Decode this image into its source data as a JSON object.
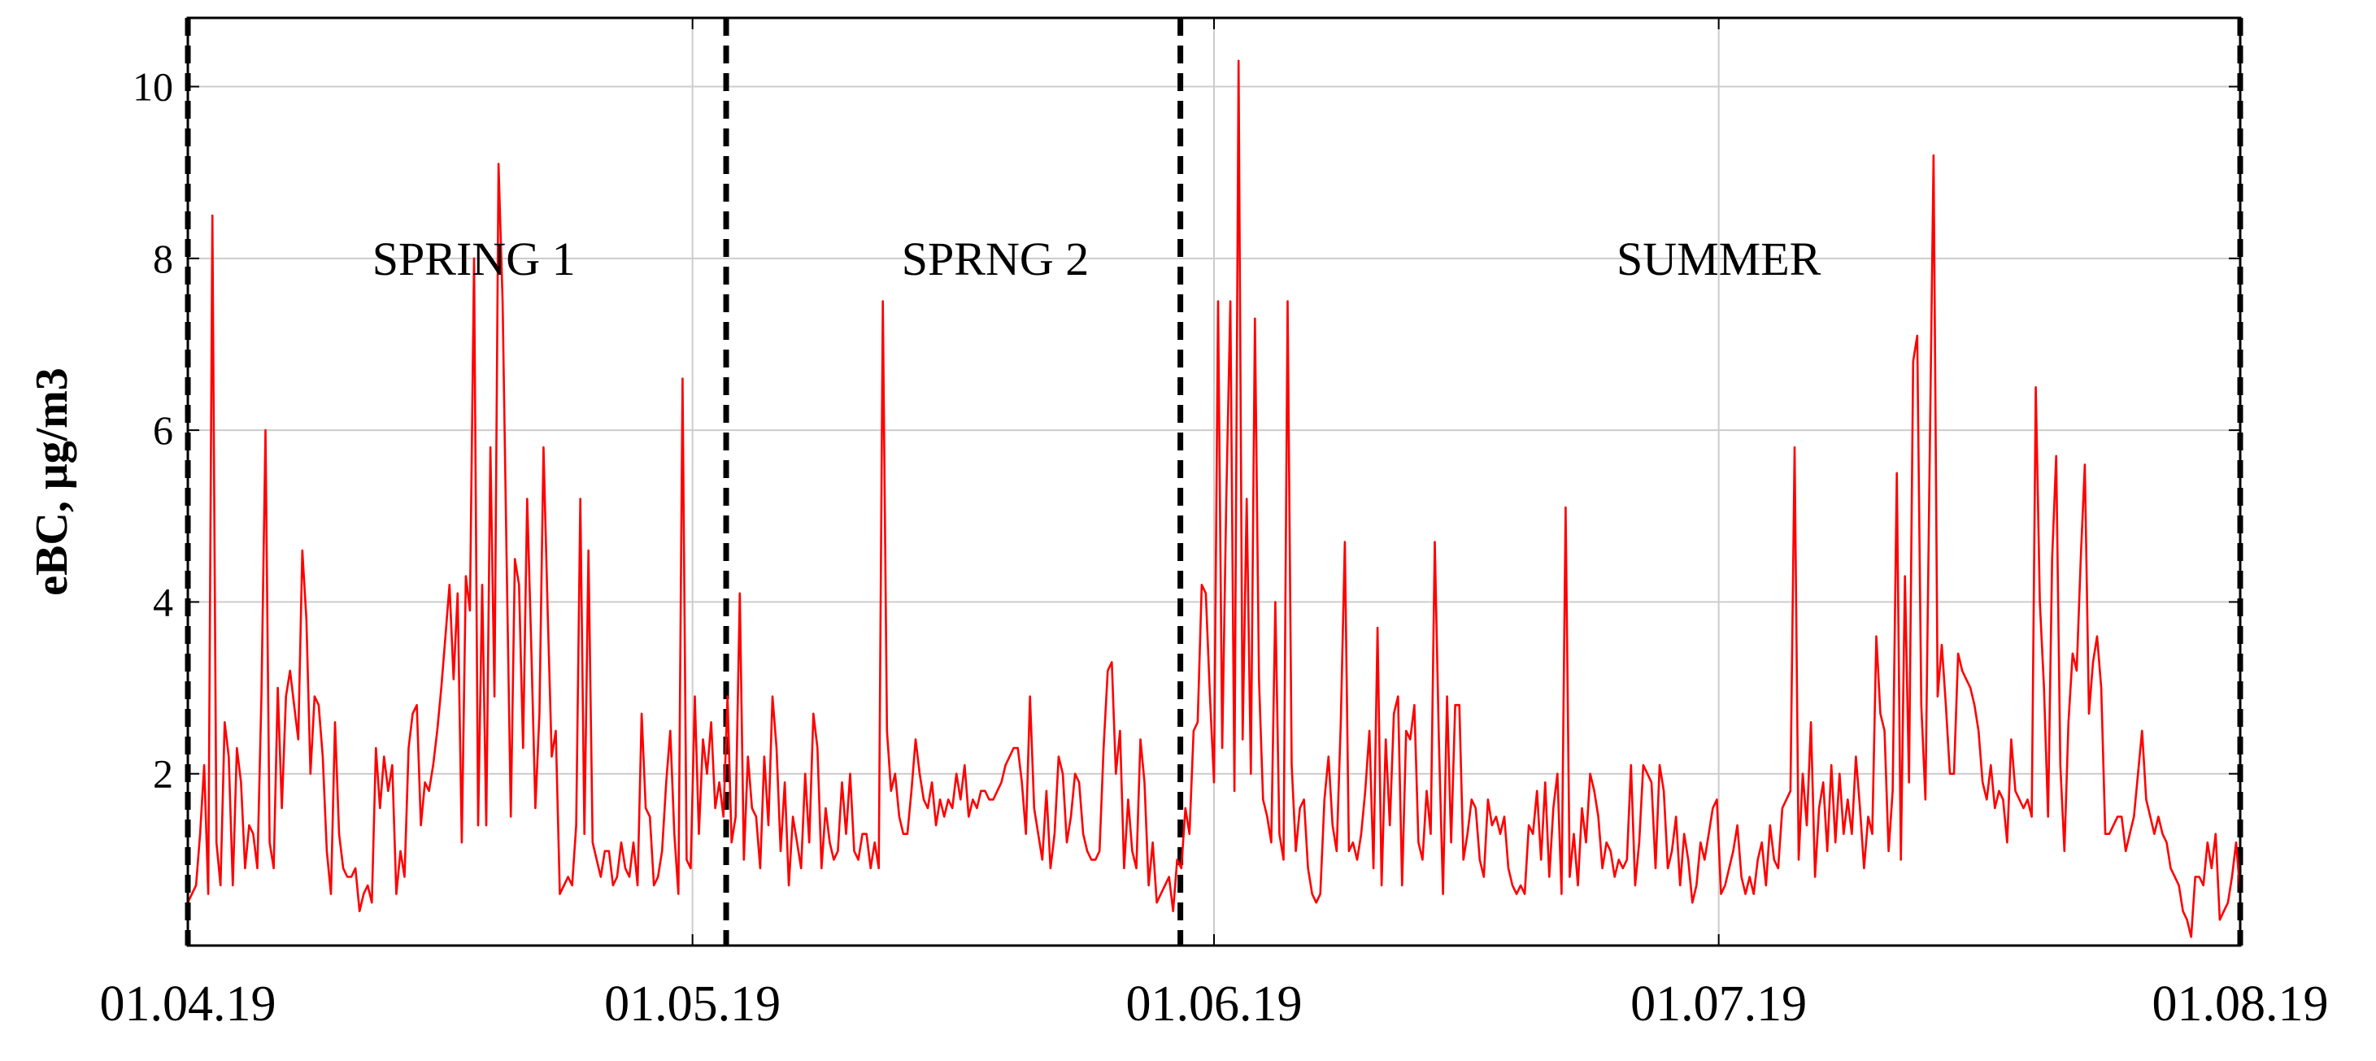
{
  "chart_data": {
    "type": "line",
    "title": "",
    "xlabel": "",
    "ylabel": "eBC, μg/m3",
    "x_ticks": [
      "01.04.19",
      "01.05.19",
      "01.06.19",
      "01.07.19",
      "01.08.19"
    ],
    "y_ticks": [
      "2",
      "4",
      "6",
      "8",
      "10"
    ],
    "ylim": [
      0,
      10.8
    ],
    "xlim": [
      "2019-04-01",
      "2019-08-01"
    ],
    "grid": true,
    "line_color": "#ff0000",
    "period_separators": [
      "2019-05-03",
      "2019-05-30"
    ],
    "period_labels": [
      {
        "text": "SPRING 1",
        "x": "2019-04-18"
      },
      {
        "text": "SPRNG 2",
        "x": "2019-05-19"
      },
      {
        "text": "SUMMER",
        "x": "2019-07-01"
      }
    ],
    "x_dates": {
      "start": "2019-04-01",
      "end": "2019-08-01"
    },
    "series": [
      {
        "values": [
          0.5,
          0.6,
          0.7,
          1.3,
          2.1,
          0.6,
          8.5,
          1.2,
          0.7,
          2.6,
          2.2,
          0.7,
          2.3,
          1.9,
          0.9,
          1.4,
          1.3,
          0.9,
          2.9,
          6.0,
          1.2,
          0.9,
          3.0,
          1.6,
          2.9,
          3.2,
          2.8,
          2.4,
          4.6,
          3.8,
          2.0,
          2.9,
          2.8,
          2.2,
          1.1,
          0.6,
          2.6,
          1.3,
          0.9,
          0.8,
          0.8,
          0.9,
          0.4,
          0.6,
          0.7,
          0.5,
          2.3,
          1.6,
          2.2,
          1.8,
          2.1,
          0.6,
          1.1,
          0.8,
          2.3,
          2.7,
          2.8,
          1.4,
          1.9,
          1.8,
          2.1,
          2.5,
          3.0,
          3.6,
          4.2,
          3.1,
          4.1,
          1.2,
          4.3,
          3.9,
          8.0,
          1.4,
          4.2,
          1.4,
          5.8,
          2.9,
          9.1,
          7.5,
          4.4,
          1.5,
          4.5,
          4.2,
          2.3,
          5.2,
          3.5,
          1.6,
          2.7,
          5.8,
          3.9,
          2.2,
          2.5,
          0.6,
          0.7,
          0.8,
          0.7,
          1.4,
          5.2,
          1.3,
          4.6,
          1.2,
          1.0,
          0.8,
          1.1,
          1.1,
          0.7,
          0.8,
          1.2,
          0.9,
          0.8,
          1.2,
          0.7,
          2.7,
          1.6,
          1.5,
          0.7,
          0.8,
          1.1,
          1.9,
          2.5,
          1.3,
          0.6,
          6.6,
          1.0,
          0.9,
          2.9,
          1.3,
          2.4,
          2.0,
          2.6,
          1.6,
          1.9,
          1.5,
          2.9,
          1.2,
          1.5,
          4.1,
          1.0,
          2.2,
          1.6,
          1.5,
          0.9,
          2.2,
          1.4,
          2.9,
          2.3,
          1.1,
          1.9,
          0.7,
          1.5,
          1.2,
          0.9,
          2.0,
          1.2,
          2.7,
          2.3,
          0.9,
          1.6,
          1.2,
          1.0,
          1.1,
          1.9,
          1.3,
          2.0,
          1.1,
          1.0,
          1.3,
          1.3,
          0.9,
          1.2,
          0.9,
          7.5,
          2.5,
          1.8,
          2.0,
          1.5,
          1.3,
          1.3,
          1.8,
          2.4,
          2.0,
          1.7,
          1.6,
          1.9,
          1.4,
          1.7,
          1.5,
          1.7,
          1.6,
          2.0,
          1.7,
          2.1,
          1.5,
          1.7,
          1.6,
          1.8,
          1.8,
          1.7,
          1.7,
          1.8,
          1.9,
          2.1,
          2.2,
          2.3,
          2.3,
          1.9,
          1.3,
          2.9,
          1.6,
          1.3,
          1.0,
          1.8,
          0.9,
          1.3,
          2.2,
          2.0,
          1.2,
          1.5,
          2.0,
          1.9,
          1.3,
          1.1,
          1.0,
          1.0,
          1.1,
          2.3,
          3.2,
          3.3,
          2.0,
          2.5,
          0.9,
          1.7,
          1.1,
          0.9,
          2.4,
          1.9,
          0.7,
          1.2,
          0.5,
          0.6,
          0.7,
          0.8,
          0.4,
          1.0,
          0.9,
          1.6,
          1.3,
          2.5,
          2.6,
          4.2,
          4.1,
          2.9,
          1.9,
          7.5,
          2.3,
          5.2,
          7.5,
          1.8,
          10.3,
          2.4,
          5.2,
          2.0,
          7.3,
          3.1,
          1.7,
          1.5,
          1.2,
          4.0,
          1.3,
          1.0,
          7.5,
          2.1,
          1.1,
          1.6,
          1.7,
          0.9,
          0.6,
          0.5,
          0.6,
          1.7,
          2.2,
          1.4,
          1.1,
          2.6,
          4.7,
          1.1,
          1.2,
          1.0,
          1.3,
          1.8,
          2.5,
          0.9,
          3.7,
          0.7,
          2.4,
          1.4,
          2.7,
          2.9,
          0.7,
          2.5,
          2.4,
          2.8,
          1.2,
          1.0,
          1.8,
          1.3,
          4.7,
          2.4,
          0.6,
          2.9,
          1.2,
          2.8,
          2.8,
          1.0,
          1.3,
          1.7,
          1.6,
          1.0,
          0.8,
          1.7,
          1.4,
          1.5,
          1.3,
          1.5,
          0.9,
          0.7,
          0.6,
          0.7,
          0.6,
          1.4,
          1.3,
          1.8,
          1.0,
          1.9,
          0.8,
          1.6,
          2.0,
          0.6,
          5.1,
          0.8,
          1.3,
          0.7,
          1.6,
          1.2,
          2.0,
          1.8,
          1.5,
          0.9,
          1.2,
          1.1,
          0.8,
          1.0,
          0.9,
          1.0,
          2.1,
          0.7,
          1.2,
          2.1,
          2.0,
          1.9,
          0.9,
          2.1,
          1.8,
          0.9,
          1.1,
          1.5,
          0.7,
          1.3,
          1.0,
          0.5,
          0.7,
          1.2,
          1.0,
          1.3,
          1.6,
          1.7,
          0.6,
          0.7,
          0.9,
          1.1,
          1.4,
          0.8,
          0.6,
          0.8,
          0.6,
          1.0,
          1.2,
          0.7,
          1.4,
          1.0,
          0.9,
          1.6,
          1.7,
          1.8,
          5.8,
          1.0,
          2.0,
          1.4,
          2.6,
          0.8,
          1.6,
          1.9,
          1.1,
          2.1,
          1.2,
          2.0,
          1.3,
          1.7,
          1.3,
          2.2,
          1.6,
          0.9,
          1.5,
          1.3,
          3.6,
          2.7,
          2.5,
          1.1,
          1.8,
          5.5,
          1.0,
          4.3,
          1.9,
          6.8,
          7.1,
          2.8,
          1.7,
          5.5,
          9.2,
          2.9,
          3.5,
          2.8,
          2.0,
          2.0,
          3.4,
          3.2,
          3.1,
          3.0,
          2.8,
          2.5,
          1.9,
          1.7,
          2.1,
          1.6,
          1.8,
          1.7,
          1.2,
          2.4,
          1.8,
          1.7,
          1.6,
          1.7,
          1.5,
          6.5,
          4.0,
          3.0,
          1.5,
          4.5,
          5.7,
          2.1,
          1.1,
          2.6,
          3.4,
          3.2,
          4.5,
          5.6,
          2.7,
          3.3,
          3.6,
          3.0,
          1.3,
          1.3,
          1.4,
          1.5,
          1.5,
          1.1,
          1.3,
          1.5,
          2.0,
          2.5,
          1.7,
          1.5,
          1.3,
          1.5,
          1.3,
          1.2,
          0.9,
          0.8,
          0.7,
          0.4,
          0.3,
          0.1,
          0.8,
          0.8,
          0.7,
          1.2,
          0.9,
          1.3,
          0.3,
          0.4,
          0.5,
          0.8,
          1.2,
          0.6
        ]
      }
    ]
  }
}
